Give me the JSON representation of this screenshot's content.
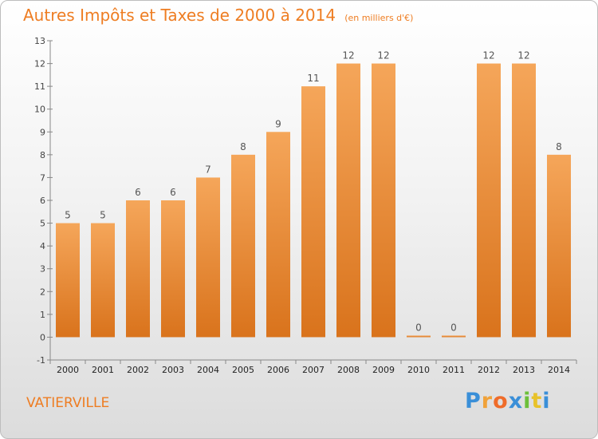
{
  "chart_data": {
    "type": "bar",
    "title": "Autres Impôts et Taxes de 2000 à 2014",
    "unit": "(en milliers d'€)",
    "categories": [
      "2000",
      "2001",
      "2002",
      "2003",
      "2004",
      "2005",
      "2006",
      "2007",
      "2008",
      "2009",
      "2010",
      "2011",
      "2012",
      "2013",
      "2014"
    ],
    "values": [
      5,
      5,
      6,
      6,
      7,
      8,
      9,
      11,
      12,
      12,
      0,
      0,
      12,
      12,
      8
    ],
    "ylim": [
      -1,
      13
    ],
    "yticks": [
      -1,
      0,
      1,
      2,
      3,
      4,
      5,
      6,
      7,
      8,
      9,
      10,
      11,
      12,
      13
    ],
    "grid": false,
    "bar_color": "#f08a2c"
  },
  "commune": "VATIERVILLE",
  "brand": {
    "letters": [
      "P",
      "r",
      "o",
      "x",
      "i",
      "t",
      "i"
    ],
    "colors": [
      "#3a8fd8",
      "#f0a23a",
      "#ef6c2a",
      "#3a8fd8",
      "#6cbf3a",
      "#e8c22a",
      "#3a8fd8"
    ]
  }
}
